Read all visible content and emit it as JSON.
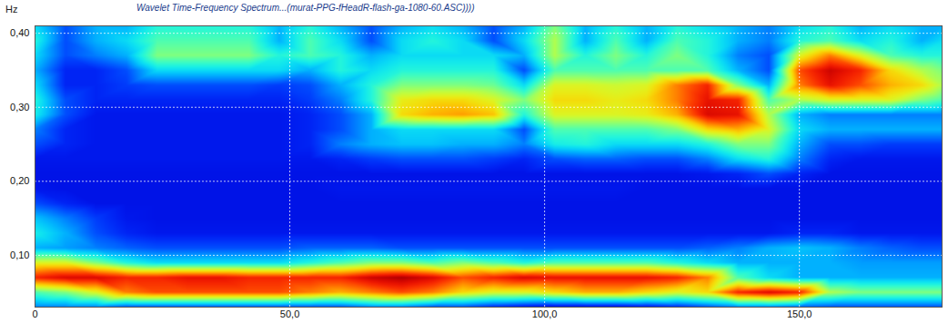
{
  "chart_data": {
    "type": "heatmap",
    "title": "Wavelet Time-Frequency Spectrum...(murat-PPG-fHeadR-flash-ga-1080-60.ASC))))",
    "y_label": "Hz",
    "color": "jet",
    "grid": true,
    "xlim": [
      0,
      178
    ],
    "ylim": [
      0.03,
      0.41
    ],
    "xticks": [
      0,
      {
        "value": 50,
        "label": "50,0"
      },
      {
        "value": 100,
        "label": "100,0"
      },
      {
        "value": 150,
        "label": "150,0"
      }
    ],
    "yticks": [
      {
        "value": 0.1,
        "label": "0,10"
      },
      {
        "value": 0.2,
        "label": "0,20"
      },
      {
        "value": 0.3,
        "label": "0,30"
      },
      {
        "value": 0.4,
        "label": "0,40"
      }
    ],
    "zlim": [
      0,
      1
    ],
    "cells": {
      "x": [
        0,
        6,
        12,
        18,
        24,
        30,
        36,
        42,
        48,
        54,
        60,
        66,
        72,
        78,
        84,
        90,
        96,
        102,
        108,
        114,
        120,
        126,
        132,
        138,
        144,
        150,
        156,
        162,
        168,
        174,
        178
      ],
      "y": [
        0.03,
        0.05,
        0.07,
        0.09,
        0.11,
        0.13,
        0.15,
        0.17,
        0.19,
        0.21,
        0.23,
        0.25,
        0.27,
        0.29,
        0.31,
        0.33,
        0.35,
        0.37,
        0.39,
        0.41
      ],
      "values": [
        [
          0.25,
          0.25,
          0.25,
          0.2,
          0.2,
          0.2,
          0.2,
          0.2,
          0.2,
          0.2,
          0.2,
          0.25,
          0.25,
          0.2,
          0.2,
          0.15,
          0.12,
          0.1,
          0.1,
          0.1,
          0.12,
          0.15,
          0.2,
          0.25,
          0.25,
          0.22,
          0.2,
          0.2,
          0.2,
          0.2,
          0.2
        ],
        [
          0.45,
          0.5,
          0.6,
          0.75,
          0.8,
          0.8,
          0.8,
          0.8,
          0.8,
          0.75,
          0.7,
          0.75,
          0.8,
          0.75,
          0.65,
          0.6,
          0.6,
          0.65,
          0.7,
          0.7,
          0.65,
          0.6,
          0.65,
          0.85,
          0.9,
          0.85,
          0.55,
          0.5,
          0.5,
          0.5,
          0.5
        ],
        [
          0.85,
          0.9,
          0.9,
          0.85,
          0.85,
          0.88,
          0.88,
          0.85,
          0.85,
          0.85,
          0.85,
          0.92,
          0.95,
          0.9,
          0.8,
          0.85,
          0.9,
          0.88,
          0.88,
          0.88,
          0.88,
          0.85,
          0.75,
          0.45,
          0.35,
          0.3,
          0.3,
          0.3,
          0.3,
          0.3,
          0.3
        ],
        [
          0.6,
          0.6,
          0.5,
          0.4,
          0.35,
          0.35,
          0.35,
          0.35,
          0.35,
          0.4,
          0.45,
          0.5,
          0.5,
          0.45,
          0.5,
          0.45,
          0.4,
          0.45,
          0.45,
          0.45,
          0.45,
          0.4,
          0.35,
          0.3,
          0.3,
          0.3,
          0.3,
          0.28,
          0.28,
          0.28,
          0.28
        ],
        [
          0.3,
          0.28,
          0.25,
          0.22,
          0.2,
          0.2,
          0.2,
          0.2,
          0.2,
          0.22,
          0.22,
          0.22,
          0.2,
          0.2,
          0.2,
          0.2,
          0.2,
          0.2,
          0.2,
          0.2,
          0.2,
          0.2,
          0.22,
          0.25,
          0.3,
          0.32,
          0.3,
          0.25,
          0.22,
          0.2,
          0.2
        ],
        [
          0.38,
          0.3,
          0.2,
          0.15,
          0.13,
          0.13,
          0.13,
          0.13,
          0.13,
          0.13,
          0.13,
          0.13,
          0.13,
          0.13,
          0.13,
          0.13,
          0.13,
          0.13,
          0.13,
          0.13,
          0.13,
          0.13,
          0.13,
          0.13,
          0.13,
          0.15,
          0.15,
          0.13,
          0.13,
          0.13,
          0.13
        ],
        [
          0.32,
          0.25,
          0.18,
          0.13,
          0.12,
          0.12,
          0.12,
          0.12,
          0.12,
          0.12,
          0.12,
          0.12,
          0.12,
          0.12,
          0.12,
          0.12,
          0.12,
          0.12,
          0.12,
          0.12,
          0.12,
          0.12,
          0.12,
          0.12,
          0.12,
          0.12,
          0.12,
          0.12,
          0.12,
          0.12,
          0.12
        ],
        [
          0.2,
          0.15,
          0.12,
          0.12,
          0.12,
          0.12,
          0.12,
          0.12,
          0.12,
          0.12,
          0.12,
          0.12,
          0.12,
          0.12,
          0.12,
          0.12,
          0.12,
          0.12,
          0.12,
          0.12,
          0.12,
          0.12,
          0.12,
          0.12,
          0.12,
          0.12,
          0.12,
          0.12,
          0.12,
          0.12,
          0.12
        ],
        [
          0.13,
          0.12,
          0.12,
          0.12,
          0.12,
          0.12,
          0.12,
          0.12,
          0.12,
          0.12,
          0.13,
          0.13,
          0.13,
          0.13,
          0.13,
          0.13,
          0.13,
          0.13,
          0.13,
          0.13,
          0.12,
          0.12,
          0.12,
          0.12,
          0.12,
          0.12,
          0.12,
          0.12,
          0.12,
          0.12,
          0.12
        ],
        [
          0.12,
          0.12,
          0.12,
          0.12,
          0.12,
          0.12,
          0.12,
          0.12,
          0.12,
          0.12,
          0.12,
          0.12,
          0.12,
          0.12,
          0.12,
          0.12,
          0.12,
          0.12,
          0.12,
          0.12,
          0.12,
          0.12,
          0.13,
          0.15,
          0.2,
          0.15,
          0.12,
          0.12,
          0.12,
          0.12,
          0.12
        ],
        [
          0.13,
          0.13,
          0.13,
          0.13,
          0.13,
          0.13,
          0.13,
          0.13,
          0.13,
          0.13,
          0.15,
          0.18,
          0.2,
          0.2,
          0.2,
          0.18,
          0.15,
          0.2,
          0.22,
          0.22,
          0.2,
          0.2,
          0.25,
          0.35,
          0.4,
          0.25,
          0.15,
          0.13,
          0.13,
          0.13,
          0.13
        ],
        [
          0.2,
          0.15,
          0.13,
          0.13,
          0.13,
          0.13,
          0.13,
          0.13,
          0.13,
          0.15,
          0.25,
          0.3,
          0.32,
          0.32,
          0.3,
          0.3,
          0.25,
          0.38,
          0.4,
          0.35,
          0.35,
          0.35,
          0.4,
          0.5,
          0.5,
          0.3,
          0.2,
          0.2,
          0.18,
          0.18,
          0.18
        ],
        [
          0.25,
          0.15,
          0.13,
          0.13,
          0.13,
          0.13,
          0.13,
          0.13,
          0.13,
          0.15,
          0.2,
          0.3,
          0.35,
          0.35,
          0.35,
          0.35,
          0.2,
          0.45,
          0.45,
          0.45,
          0.45,
          0.5,
          0.65,
          0.7,
          0.6,
          0.35,
          0.3,
          0.3,
          0.3,
          0.3,
          0.3
        ],
        [
          0.38,
          0.2,
          0.13,
          0.13,
          0.13,
          0.13,
          0.13,
          0.13,
          0.13,
          0.15,
          0.2,
          0.3,
          0.65,
          0.7,
          0.72,
          0.68,
          0.4,
          0.6,
          0.6,
          0.6,
          0.62,
          0.7,
          0.9,
          0.88,
          0.55,
          0.3,
          0.25,
          0.25,
          0.25,
          0.25,
          0.25
        ],
        [
          0.4,
          0.2,
          0.15,
          0.15,
          0.15,
          0.15,
          0.15,
          0.15,
          0.15,
          0.18,
          0.25,
          0.4,
          0.62,
          0.65,
          0.65,
          0.6,
          0.5,
          0.65,
          0.65,
          0.62,
          0.65,
          0.75,
          0.88,
          0.85,
          0.45,
          0.55,
          0.6,
          0.6,
          0.6,
          0.5,
          0.45
        ],
        [
          0.35,
          0.15,
          0.15,
          0.18,
          0.2,
          0.2,
          0.2,
          0.2,
          0.18,
          0.2,
          0.3,
          0.4,
          0.5,
          0.5,
          0.5,
          0.48,
          0.35,
          0.6,
          0.6,
          0.58,
          0.6,
          0.75,
          0.85,
          0.5,
          0.3,
          0.75,
          0.88,
          0.8,
          0.7,
          0.65,
          0.55
        ],
        [
          0.3,
          0.15,
          0.15,
          0.2,
          0.35,
          0.35,
          0.35,
          0.35,
          0.35,
          0.3,
          0.4,
          0.35,
          0.4,
          0.4,
          0.4,
          0.4,
          0.2,
          0.45,
          0.45,
          0.45,
          0.45,
          0.45,
          0.45,
          0.3,
          0.2,
          0.8,
          0.92,
          0.85,
          0.65,
          0.55,
          0.5
        ],
        [
          0.35,
          0.2,
          0.25,
          0.3,
          0.5,
          0.5,
          0.5,
          0.5,
          0.4,
          0.45,
          0.4,
          0.3,
          0.35,
          0.35,
          0.35,
          0.35,
          0.3,
          0.55,
          0.4,
          0.5,
          0.4,
          0.5,
          0.4,
          0.25,
          0.2,
          0.6,
          0.75,
          0.6,
          0.45,
          0.4,
          0.4
        ],
        [
          0.4,
          0.2,
          0.3,
          0.35,
          0.45,
          0.45,
          0.45,
          0.45,
          0.3,
          0.45,
          0.35,
          0.2,
          0.35,
          0.4,
          0.35,
          0.2,
          0.35,
          0.55,
          0.3,
          0.45,
          0.3,
          0.45,
          0.4,
          0.3,
          0.25,
          0.4,
          0.45,
          0.35,
          0.4,
          0.3,
          0.35
        ],
        [
          0.35,
          0.2,
          0.3,
          0.3,
          0.4,
          0.4,
          0.4,
          0.4,
          0.3,
          0.4,
          0.3,
          0.2,
          0.3,
          0.35,
          0.3,
          0.2,
          0.3,
          0.5,
          0.3,
          0.4,
          0.3,
          0.4,
          0.35,
          0.3,
          0.25,
          0.35,
          0.4,
          0.3,
          0.35,
          0.3,
          0.3
        ]
      ]
    }
  }
}
